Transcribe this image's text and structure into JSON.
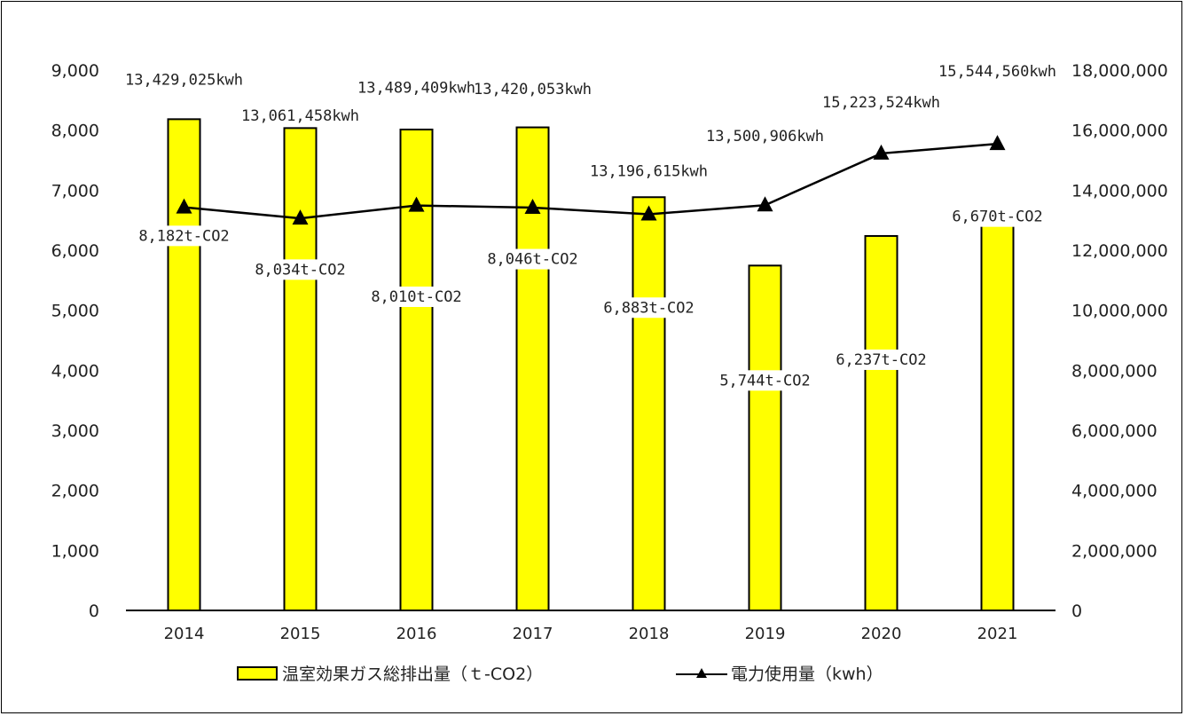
{
  "chart_data": {
    "type": "bar",
    "categories": [
      "2014",
      "2015",
      "2016",
      "2017",
      "2018",
      "2019",
      "2020",
      "2021"
    ],
    "series": [
      {
        "name": "温室効果ガス総排出量（ｔ-CO2）",
        "type": "bar",
        "axis": "left",
        "values": [
          8182,
          8034,
          8010,
          8046,
          6883,
          5744,
          6237,
          6670
        ],
        "labels": [
          "8,182t-CO2",
          "8,034t-CO2",
          "8,010t-CO2",
          "8,046t-CO2",
          "6,883t-CO2",
          "5,744t-CO2",
          "6,237t-CO2",
          "6,670t-CO2"
        ],
        "color": "#ffff00"
      },
      {
        "name": "電力使用量（kwh）",
        "type": "line",
        "axis": "right",
        "values": [
          13429025,
          13061458,
          13489409,
          13420053,
          13196615,
          13500906,
          15223524,
          15544560
        ],
        "labels": [
          "13,429,025kwh",
          "13,061,458kwh",
          "13,489,409kwh",
          "13,420,053kwh",
          "13,196,615kwh",
          "13,500,906kwh",
          "15,223,524kwh",
          "15,544,560kwh"
        ],
        "color": "#000000",
        "marker": "triangle"
      }
    ],
    "y_left": {
      "lim": [
        0,
        9000
      ],
      "ticks": [
        "0",
        "1,000",
        "2,000",
        "3,000",
        "4,000",
        "5,000",
        "6,000",
        "7,000",
        "8,000",
        "9,000"
      ]
    },
    "y_right": {
      "lim": [
        0,
        18000000
      ],
      "ticks": [
        "0",
        "2,000,000",
        "4,000,000",
        "6,000,000",
        "8,000,000",
        "10,000,000",
        "12,000,000",
        "14,000,000",
        "16,000,000",
        "18,000,000"
      ]
    },
    "grid": false,
    "legend_position": "bottom"
  }
}
